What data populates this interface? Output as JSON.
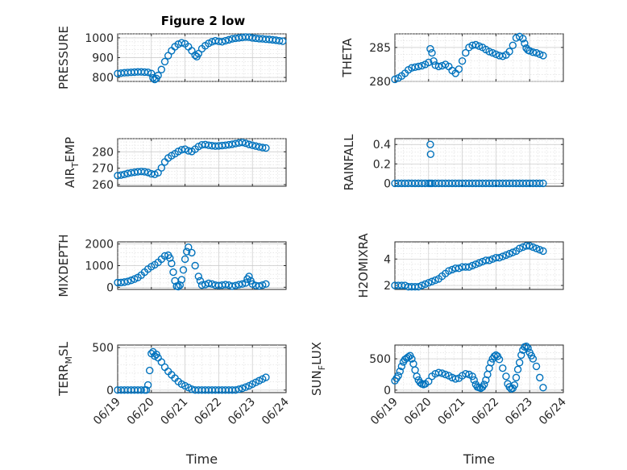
{
  "figure": {
    "title": "Figure 2 low",
    "marker_color": "#0072bd",
    "x_tick_labels": [
      "06/19",
      "06/20",
      "06/21",
      "06/22",
      "06/23",
      "06/24"
    ]
  },
  "chart_data": [
    {
      "type": "scatter",
      "panel": "top-left",
      "title": "Figure 2 low",
      "ylabel": "PRESSURE",
      "xlabel": "",
      "xlim": [
        0,
        5
      ],
      "ylim": [
        780,
        1020
      ],
      "yticks": [
        800,
        900,
        1000
      ],
      "grid": true,
      "series": [
        {
          "x": [
            0.0,
            0.1,
            0.2,
            0.3,
            0.4,
            0.5,
            0.6,
            0.7,
            0.8,
            0.9,
            1.0,
            1.05,
            1.1,
            1.15,
            1.2,
            1.3,
            1.4,
            1.5,
            1.6,
            1.7,
            1.8,
            1.9,
            2.0,
            2.1,
            2.2,
            2.3,
            2.35,
            2.4,
            2.5,
            2.6,
            2.7,
            2.8,
            2.9,
            3.0,
            3.1,
            3.2,
            3.3,
            3.4,
            3.5,
            3.6,
            3.7,
            3.8,
            3.9,
            4.0,
            4.1,
            4.2,
            4.3,
            4.4,
            4.5,
            4.6,
            4.7,
            4.8,
            4.9
          ],
          "y": [
            820,
            822,
            824,
            825,
            826,
            827,
            828,
            828,
            827,
            826,
            820,
            798,
            790,
            795,
            810,
            840,
            880,
            910,
            935,
            955,
            968,
            975,
            970,
            955,
            935,
            912,
            905,
            920,
            945,
            960,
            972,
            980,
            985,
            982,
            980,
            985,
            990,
            995,
            998,
            1000,
            1002,
            1004,
            1003,
            1000,
            998,
            996,
            995,
            993,
            992,
            990,
            988,
            985,
            983
          ]
        }
      ]
    },
    {
      "type": "scatter",
      "panel": "top-right",
      "ylabel": "THETA",
      "xlabel": "",
      "xlim": [
        0,
        5
      ],
      "ylim": [
        280,
        287
      ],
      "yticks": [
        280,
        285
      ],
      "grid": true,
      "series": [
        {
          "x": [
            0.0,
            0.1,
            0.2,
            0.3,
            0.4,
            0.5,
            0.6,
            0.7,
            0.8,
            0.9,
            1.0,
            1.05,
            1.1,
            1.15,
            1.2,
            1.3,
            1.4,
            1.5,
            1.6,
            1.7,
            1.8,
            1.9,
            2.0,
            2.1,
            2.2,
            2.3,
            2.4,
            2.5,
            2.6,
            2.7,
            2.8,
            2.9,
            3.0,
            3.1,
            3.2,
            3.3,
            3.4,
            3.5,
            3.6,
            3.7,
            3.8,
            3.85,
            3.9,
            3.95,
            4.0,
            4.1,
            4.2,
            4.3,
            4.4
          ],
          "y": [
            280.3,
            280.5,
            280.8,
            281.2,
            281.7,
            282.0,
            282.1,
            282.2,
            282.3,
            282.5,
            282.8,
            284.8,
            284.2,
            283.0,
            282.4,
            282.2,
            282.3,
            282.5,
            282.2,
            281.6,
            281.2,
            281.8,
            283.0,
            284.2,
            285.0,
            285.3,
            285.4,
            285.2,
            285.0,
            284.7,
            284.4,
            284.2,
            284.0,
            283.8,
            283.7,
            283.9,
            284.4,
            285.3,
            286.4,
            286.6,
            286.3,
            285.6,
            284.9,
            284.6,
            284.5,
            284.3,
            284.2,
            284.0,
            283.8
          ]
        }
      ]
    },
    {
      "type": "scatter",
      "panel": "row2-left",
      "ylabel": "AIR_TEMP",
      "xlabel": "",
      "xlim": [
        0,
        5
      ],
      "ylim": [
        259,
        288
      ],
      "yticks": [
        260,
        270,
        280
      ],
      "grid": true,
      "series": [
        {
          "x": [
            0.0,
            0.1,
            0.2,
            0.3,
            0.4,
            0.5,
            0.6,
            0.7,
            0.8,
            0.9,
            1.0,
            1.1,
            1.2,
            1.3,
            1.4,
            1.5,
            1.6,
            1.7,
            1.8,
            1.9,
            2.0,
            2.1,
            2.2,
            2.3,
            2.4,
            2.5,
            2.6,
            2.7,
            2.8,
            2.9,
            3.0,
            3.1,
            3.2,
            3.3,
            3.4,
            3.5,
            3.6,
            3.7,
            3.8,
            3.9,
            4.0,
            4.1,
            4.2,
            4.3,
            4.4
          ],
          "y": [
            265.5,
            265.8,
            266.2,
            266.8,
            267.2,
            267.5,
            267.8,
            268.0,
            267.8,
            267.4,
            266.6,
            266.2,
            267.2,
            270.2,
            273.8,
            276.2,
            277.6,
            278.8,
            280.2,
            281.2,
            281.6,
            280.6,
            280.2,
            281.6,
            283.2,
            284.2,
            284.4,
            284.0,
            283.7,
            283.5,
            283.6,
            283.8,
            284.0,
            284.3,
            284.6,
            285.0,
            285.4,
            285.7,
            285.2,
            284.5,
            284.0,
            283.5,
            283.0,
            282.6,
            282.3
          ]
        }
      ]
    },
    {
      "type": "scatter",
      "panel": "row2-right",
      "ylabel": "RAINFALL",
      "xlabel": "",
      "xlim": [
        0,
        5
      ],
      "ylim": [
        -0.03,
        0.46
      ],
      "yticks": [
        0,
        0.2,
        0.4
      ],
      "grid": true,
      "series": [
        {
          "x": [
            0.0,
            0.1,
            0.2,
            0.3,
            0.4,
            0.5,
            0.6,
            0.7,
            0.8,
            0.9,
            1.0,
            1.05,
            1.1,
            1.2,
            1.3,
            1.4,
            1.5,
            1.6,
            1.7,
            1.8,
            1.9,
            2.0,
            2.1,
            2.2,
            2.3,
            2.4,
            2.5,
            2.6,
            2.7,
            2.8,
            2.9,
            3.0,
            3.1,
            3.2,
            3.3,
            3.4,
            3.5,
            3.6,
            3.7,
            3.8,
            3.9,
            4.0,
            4.1,
            4.2,
            4.3,
            4.4,
            1.05,
            1.06
          ],
          "y": [
            0,
            0,
            0,
            0,
            0,
            0,
            0,
            0,
            0,
            0,
            0,
            0,
            0,
            0,
            0,
            0,
            0,
            0,
            0,
            0,
            0,
            0,
            0,
            0,
            0,
            0,
            0,
            0,
            0,
            0,
            0,
            0,
            0,
            0,
            0,
            0,
            0,
            0,
            0,
            0,
            0,
            0,
            0,
            0,
            0,
            0,
            0.4,
            0.3
          ]
        }
      ]
    },
    {
      "type": "scatter",
      "panel": "row3-left",
      "ylabel": "MIXDEPTH",
      "xlabel": "",
      "xlim": [
        0,
        5
      ],
      "ylim": [
        -100,
        2100
      ],
      "yticks": [
        0,
        1000,
        2000
      ],
      "grid": true,
      "series": [
        {
          "x": [
            0.0,
            0.1,
            0.2,
            0.3,
            0.4,
            0.5,
            0.6,
            0.7,
            0.8,
            0.9,
            1.0,
            1.1,
            1.2,
            1.3,
            1.4,
            1.5,
            1.55,
            1.6,
            1.65,
            1.7,
            1.75,
            1.8,
            1.85,
            1.9,
            1.95,
            2.0,
            2.05,
            2.1,
            2.2,
            2.3,
            2.4,
            2.45,
            2.5,
            2.6,
            2.7,
            2.8,
            2.9,
            3.0,
            3.1,
            3.2,
            3.3,
            3.4,
            3.5,
            3.6,
            3.7,
            3.8,
            3.85,
            3.9,
            3.95,
            4.0,
            4.1,
            4.2,
            4.3,
            4.4
          ],
          "y": [
            220,
            220,
            240,
            270,
            320,
            380,
            450,
            560,
            700,
            840,
            950,
            1040,
            1150,
            1300,
            1450,
            1480,
            1350,
            1100,
            700,
            300,
            50,
            30,
            100,
            350,
            800,
            1300,
            1650,
            1850,
            1600,
            1000,
            500,
            300,
            100,
            120,
            180,
            150,
            100,
            80,
            100,
            120,
            100,
            50,
            80,
            120,
            150,
            200,
            380,
            500,
            300,
            150,
            80,
            60,
            100,
            150
          ]
        }
      ]
    },
    {
      "type": "scatter",
      "panel": "row3-right",
      "ylabel": "H2OMIXRA",
      "xlabel": "",
      "xlim": [
        0,
        5
      ],
      "ylim": [
        1.7,
        5.3
      ],
      "yticks": [
        2,
        4
      ],
      "grid": true,
      "series": [
        {
          "x": [
            0.0,
            0.1,
            0.2,
            0.3,
            0.4,
            0.5,
            0.6,
            0.7,
            0.8,
            0.9,
            1.0,
            1.1,
            1.2,
            1.3,
            1.4,
            1.5,
            1.6,
            1.7,
            1.8,
            1.9,
            2.0,
            2.1,
            2.2,
            2.3,
            2.4,
            2.5,
            2.6,
            2.7,
            2.8,
            2.9,
            3.0,
            3.1,
            3.2,
            3.3,
            3.4,
            3.5,
            3.6,
            3.7,
            3.8,
            3.9,
            4.0,
            4.1,
            4.2,
            4.3,
            4.4
          ],
          "y": [
            2.0,
            2.0,
            2.0,
            2.0,
            1.9,
            1.9,
            1.9,
            1.9,
            2.0,
            2.1,
            2.2,
            2.3,
            2.4,
            2.5,
            2.7,
            2.9,
            3.1,
            3.2,
            3.3,
            3.3,
            3.4,
            3.4,
            3.4,
            3.5,
            3.6,
            3.7,
            3.8,
            3.9,
            3.9,
            4.0,
            4.1,
            4.1,
            4.2,
            4.3,
            4.4,
            4.5,
            4.6,
            4.8,
            4.9,
            5.0,
            5.0,
            4.9,
            4.8,
            4.7,
            4.6
          ]
        }
      ]
    },
    {
      "type": "scatter",
      "panel": "bottom-left",
      "ylabel": "TERR_MSL",
      "xlabel": "Time",
      "xlim": [
        0,
        5
      ],
      "ylim": [
        -30,
        530
      ],
      "yticks": [
        0,
        500
      ],
      "grid": true,
      "series": [
        {
          "x": [
            0.0,
            0.1,
            0.2,
            0.3,
            0.4,
            0.5,
            0.6,
            0.7,
            0.8,
            0.85,
            0.9,
            0.95,
            1.0,
            1.05,
            1.1,
            1.15,
            1.2,
            1.3,
            1.4,
            1.5,
            1.6,
            1.7,
            1.8,
            1.9,
            2.0,
            2.1,
            2.2,
            2.3,
            2.4,
            2.5,
            2.6,
            2.7,
            2.8,
            2.9,
            3.0,
            3.1,
            3.2,
            3.3,
            3.4,
            3.5,
            3.6,
            3.7,
            3.8,
            3.9,
            4.0,
            4.1,
            4.2,
            4.3,
            4.4
          ],
          "y": [
            0,
            0,
            0,
            0,
            0,
            0,
            0,
            0,
            0,
            0,
            60,
            230,
            430,
            450,
            400,
            420,
            380,
            330,
            270,
            220,
            180,
            140,
            100,
            70,
            50,
            30,
            10,
            0,
            0,
            0,
            0,
            0,
            0,
            0,
            0,
            0,
            0,
            0,
            0,
            0,
            10,
            20,
            35,
            50,
            70,
            90,
            110,
            130,
            150
          ]
        }
      ]
    },
    {
      "type": "scatter",
      "panel": "bottom-right",
      "ylabel": "SUN_FLUX",
      "xlabel": "Time",
      "xlim": [
        0,
        5
      ],
      "ylim": [
        -40,
        720
      ],
      "yticks": [
        0,
        500
      ],
      "grid": true,
      "series": [
        {
          "x": [
            0.0,
            0.05,
            0.1,
            0.15,
            0.2,
            0.25,
            0.3,
            0.35,
            0.4,
            0.45,
            0.5,
            0.55,
            0.6,
            0.65,
            0.7,
            0.75,
            0.8,
            0.85,
            0.9,
            1.0,
            1.1,
            1.2,
            1.3,
            1.4,
            1.5,
            1.6,
            1.7,
            1.8,
            1.9,
            2.0,
            2.1,
            2.2,
            2.3,
            2.35,
            2.4,
            2.45,
            2.5,
            2.55,
            2.6,
            2.65,
            2.7,
            2.75,
            2.8,
            2.85,
            2.9,
            2.95,
            3.0,
            3.05,
            3.1,
            3.2,
            3.3,
            3.35,
            3.4,
            3.45,
            3.5,
            3.55,
            3.6,
            3.65,
            3.7,
            3.75,
            3.8,
            3.85,
            3.9,
            3.95,
            4.0,
            4.05,
            4.1,
            4.2,
            4.3,
            4.4
          ],
          "y": [
            150,
            190,
            230,
            300,
            380,
            450,
            490,
            510,
            530,
            550,
            500,
            420,
            320,
            220,
            160,
            120,
            100,
            90,
            100,
            140,
            220,
            260,
            280,
            270,
            250,
            230,
            200,
            180,
            190,
            230,
            260,
            250,
            220,
            160,
            90,
            50,
            40,
            30,
            50,
            90,
            160,
            250,
            350,
            440,
            500,
            540,
            560,
            540,
            490,
            350,
            220,
            100,
            50,
            20,
            30,
            80,
            200,
            330,
            440,
            560,
            640,
            690,
            700,
            670,
            600,
            550,
            500,
            380,
            200,
            40
          ]
        }
      ]
    }
  ]
}
